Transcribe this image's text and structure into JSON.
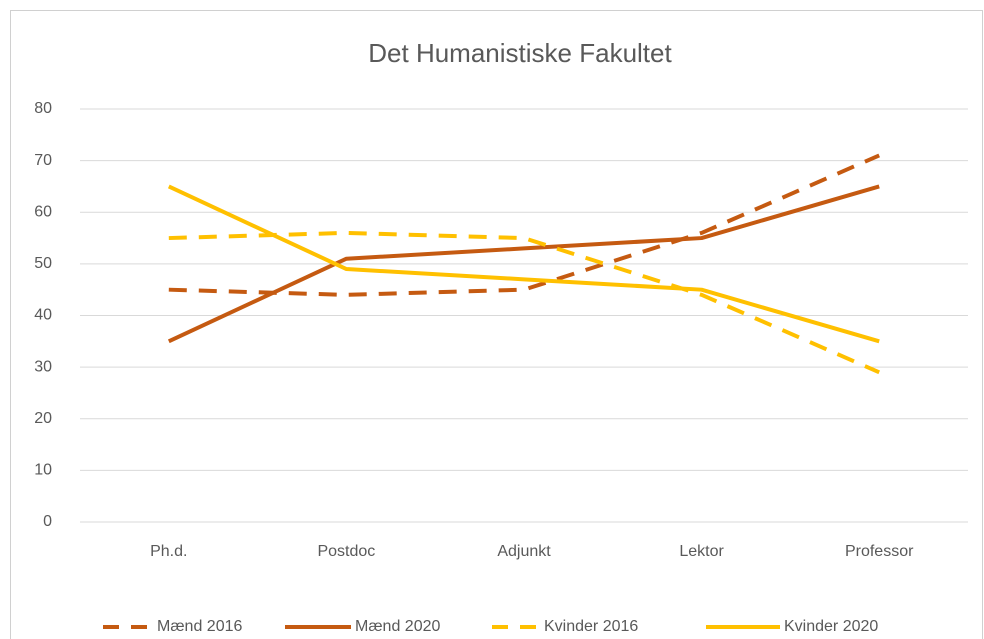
{
  "chart_data": {
    "type": "line",
    "title": "Det Humanistiske Fakultet",
    "categories": [
      "Ph.d.",
      "Postdoc",
      "Adjunkt",
      "Lektor",
      "Professor"
    ],
    "series": [
      {
        "name": "Mænd 2016",
        "color": "#c55a11",
        "dashed": true,
        "values": [
          45,
          44,
          45,
          56,
          71
        ]
      },
      {
        "name": "Mænd 2020",
        "color": "#c55a11",
        "dashed": false,
        "values": [
          35,
          51,
          53,
          55,
          65
        ]
      },
      {
        "name": "Kvinder 2016",
        "color": "#ffc000",
        "dashed": true,
        "values": [
          55,
          56,
          55,
          44,
          29
        ]
      },
      {
        "name": "Kvinder 2020",
        "color": "#ffc000",
        "dashed": false,
        "values": [
          65,
          49,
          47,
          45,
          35
        ]
      }
    ],
    "ylim": [
      0,
      80
    ],
    "yticks": [
      0,
      10,
      20,
      30,
      40,
      50,
      60,
      70,
      80
    ],
    "grid": true,
    "legend": "bottom"
  }
}
